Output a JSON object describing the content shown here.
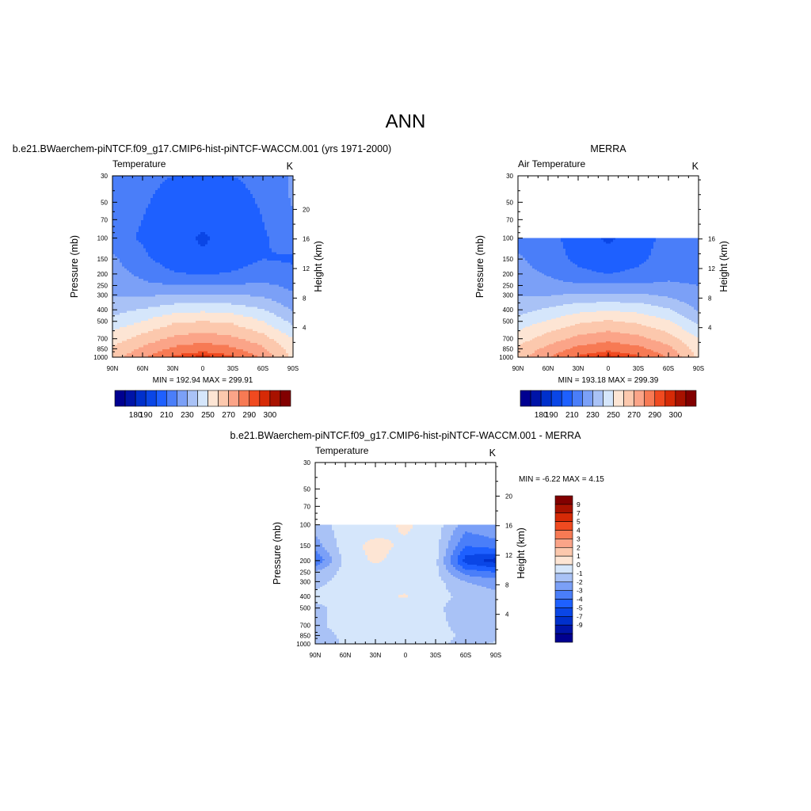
{
  "page_title": "ANN",
  "colors": {
    "temperature_fill": [
      "#000090",
      "#0014a8",
      "#0030cc",
      "#0a46e6",
      "#1e60ff",
      "#4a7ef9",
      "#7ba0f7",
      "#a9c2f6",
      "#d5e6fb",
      "#fde5d4",
      "#fcc8ad",
      "#fba488",
      "#f77a54",
      "#f04a20",
      "#d62a06",
      "#a81200",
      "#820000"
    ],
    "difference_fill": [
      "#000090",
      "#0014a8",
      "#0030cc",
      "#0a46e6",
      "#1e60ff",
      "#4a7ef9",
      "#7ba0f7",
      "#a9c2f6",
      "#d5e6fb",
      "#fde5d4",
      "#fcc8ad",
      "#fba488",
      "#f77a54",
      "#f04a20",
      "#d62a06",
      "#a81200",
      "#820000"
    ]
  },
  "chart_data": [
    {
      "type": "heatmap",
      "header": "b.e21.BWaerchem-piNTCF.f09_g17.CMIP6-hist-piNTCF-WACCM.001 (yrs 1971-2000)",
      "title": "Temperature",
      "units": "K",
      "xlabel": "",
      "ylabel": "Pressure (mb)",
      "y2label": "Height (km)",
      "x_ticks": [
        "90N",
        "60N",
        "30N",
        "0",
        "30S",
        "60S",
        "90S"
      ],
      "y_ticks": [
        30,
        50,
        70,
        100,
        150,
        200,
        250,
        300,
        400,
        500,
        700,
        850,
        1000
      ],
      "y2_ticks": [
        4,
        8,
        12,
        16,
        20
      ],
      "ylim": [
        1000,
        30
      ],
      "y_scale": "log",
      "stats": "MIN = 192.94  MAX = 299.91",
      "colorbar_labels": [
        "180",
        "190",
        "210",
        "230",
        "250",
        "270",
        "290",
        "300"
      ],
      "grid": {
        "lats": [
          90,
          60,
          30,
          0,
          -30,
          -60,
          -90
        ],
        "pressures": [
          30,
          50,
          70,
          100,
          150,
          200,
          250,
          300,
          400,
          500,
          700,
          850,
          1000
        ],
        "values": [
          [
            216,
            212,
            210,
            209,
            210,
            212,
            222
          ],
          [
            215,
            211,
            207,
            205,
            207,
            211,
            221
          ],
          [
            214,
            210,
            205,
            202,
            205,
            210,
            218
          ],
          [
            213,
            209,
            203,
            199,
            203,
            209,
            214
          ],
          [
            222,
            212,
            205,
            201,
            205,
            210,
            209
          ],
          [
            224,
            218,
            211,
            209,
            211,
            215,
            212
          ],
          [
            226,
            222,
            221,
            221,
            221,
            222,
            218
          ],
          [
            229,
            228,
            231,
            231,
            231,
            228,
            221
          ],
          [
            236,
            241,
            246,
            248,
            246,
            241,
            229
          ],
          [
            244,
            250,
            258,
            260,
            258,
            250,
            237
          ],
          [
            255,
            264,
            272,
            276,
            272,
            264,
            250
          ],
          [
            262,
            272,
            282,
            286,
            282,
            272,
            255
          ],
          [
            266,
            278,
            292,
            298,
            292,
            278,
            258
          ]
        ]
      }
    },
    {
      "type": "heatmap",
      "header": "MERRA",
      "title": "Air Temperature",
      "units": "K",
      "xlabel": "",
      "ylabel": "Pressure (mb)",
      "y2label": "Height (km)",
      "x_ticks": [
        "90N",
        "60N",
        "30N",
        "0",
        "30S",
        "60S",
        "90S"
      ],
      "y_ticks": [
        30,
        50,
        70,
        100,
        150,
        200,
        250,
        300,
        400,
        500,
        700,
        850,
        1000
      ],
      "y2_ticks": [
        4,
        8,
        12,
        16
      ],
      "ylim": [
        1000,
        30
      ],
      "y_scale": "log",
      "stats": "MIN = 193.18  MAX = 299.39",
      "colorbar_labels": [
        "180",
        "190",
        "210",
        "230",
        "250",
        "270",
        "290",
        "300"
      ],
      "grid": {
        "lats": [
          90,
          60,
          30,
          0,
          -30,
          -60,
          -90
        ],
        "pressures": [
          100,
          150,
          200,
          250,
          300,
          400,
          500,
          700,
          850,
          1000
        ],
        "values": [
          [
            215,
            212,
            207,
            198,
            207,
            212,
            215
          ],
          [
            222,
            214,
            208,
            204,
            208,
            214,
            218
          ],
          [
            224,
            219,
            212,
            210,
            212,
            217,
            216
          ],
          [
            226,
            224,
            222,
            222,
            222,
            222,
            220
          ],
          [
            229,
            229,
            232,
            232,
            232,
            228,
            222
          ],
          [
            236,
            242,
            247,
            249,
            247,
            241,
            229
          ],
          [
            244,
            251,
            258,
            261,
            258,
            251,
            237
          ],
          [
            255,
            265,
            273,
            277,
            273,
            265,
            250
          ],
          [
            262,
            273,
            283,
            287,
            283,
            273,
            255
          ],
          [
            266,
            279,
            292,
            298,
            292,
            279,
            258
          ]
        ]
      }
    },
    {
      "type": "heatmap",
      "header": "b.e21.BWaerchem-piNTCF.f09_g17.CMIP6-hist-piNTCF-WACCM.001 - MERRA",
      "title": "Temperature",
      "units": "K",
      "xlabel": "",
      "ylabel": "Pressure (mb)",
      "y2label": "Height (km)",
      "x_ticks": [
        "90N",
        "60N",
        "30N",
        "0",
        "30S",
        "60S",
        "90S"
      ],
      "y_ticks": [
        30,
        50,
        70,
        100,
        150,
        200,
        250,
        300,
        400,
        500,
        700,
        850,
        1000
      ],
      "y2_ticks": [
        4,
        8,
        12,
        16,
        20
      ],
      "ylim": [
        1000,
        30
      ],
      "y_scale": "log",
      "stats": "MIN =  -6.22  MAX =   4.15",
      "colorbar_labels": [
        "9",
        "7",
        "5",
        "4",
        "3",
        "2",
        "1",
        "0",
        "-1",
        "-2",
        "-3",
        "-4",
        "-5",
        "-7",
        "-9"
      ],
      "grid": {
        "lats": [
          90,
          60,
          30,
          0,
          -30,
          -60,
          -90
        ],
        "pressures": [
          100,
          150,
          200,
          250,
          300,
          400,
          500,
          700,
          850,
          1000
        ],
        "values": [
          [
            -0.5,
            0.5,
            0.5,
            1.2,
            0.5,
            -1.5,
            -1.0
          ],
          [
            -1.5,
            0.6,
            1.3,
            0.8,
            0.4,
            -3.0,
            -2.5
          ],
          [
            -3.0,
            0.4,
            1.2,
            0.5,
            0.3,
            -4.5,
            -5.5
          ],
          [
            -0.8,
            0.3,
            0.4,
            0.4,
            0.2,
            -2.5,
            -3.0
          ],
          [
            -0.3,
            0.4,
            0.6,
            0.5,
            0.4,
            -1.0,
            -1.5
          ],
          [
            0.2,
            0.5,
            0.8,
            1.1,
            0.4,
            -0.3,
            -0.6
          ],
          [
            -0.2,
            0.3,
            0.5,
            0.4,
            0.3,
            -0.8,
            -0.6
          ],
          [
            -0.3,
            0.5,
            0.6,
            0.4,
            0.3,
            -0.4,
            -0.8
          ],
          [
            -0.5,
            0.2,
            0.6,
            0.3,
            0.4,
            -0.2,
            -0.5
          ],
          [
            -0.8,
            0.2,
            1.0,
            0.2,
            0.4,
            -0.5,
            0.2
          ]
        ]
      }
    }
  ]
}
